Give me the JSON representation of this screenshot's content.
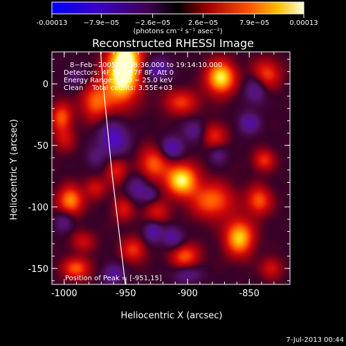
{
  "chart_data": {
    "type": "heatmap",
    "title": "Reconstructed RHESSI Image",
    "xlabel": "Heliocentric X (arcsec)",
    "ylabel": "Heliocentric Y (arcsec)",
    "xlim": [
      -1010,
      -817
    ],
    "ylim": [
      -163,
      26
    ],
    "x_ticks": [
      -1000,
      -950,
      -900,
      -850
    ],
    "x_tick_labels": [
      "-1000",
      "-950",
      "-900",
      "-850"
    ],
    "y_ticks": [
      0,
      -50,
      -100,
      -150
    ],
    "y_tick_labels": [
      "0",
      "-50",
      "-100",
      "-150"
    ],
    "colorscale": "red-temperature",
    "colorbar": {
      "range": [
        -0.00013,
        0.00013
      ],
      "tick_labels": [
        "-0.00013",
        "−7.9e−05",
        "−2.6e−05",
        "2.6e−05",
        "7.9e−05",
        "0.00013"
      ],
      "unit_label": "(photons cm⁻² s⁻¹ asec⁻²)"
    },
    "overlay_lines": [
      "8−Feb−2005 18:38:36.000 to 19:14:10.000",
      "Detectors: 4F 5F 6F 7F 8F, Att 0",
      "Energy Range: 12.0 − 25.0 keV",
      "Clean    Total counts: 3.55E+03"
    ],
    "peak_label": "Position of Peak = [-951,15]",
    "peak": {
      "x": -951,
      "y": 15
    },
    "sources": [
      {
        "x": -950,
        "y": 20,
        "amp": 1.0,
        "sx": 9,
        "sy": 14
      },
      {
        "x": -955,
        "y": 0,
        "amp": 0.7,
        "sx": 10,
        "sy": 14
      },
      {
        "x": -975,
        "y": -15,
        "amp": 0.55,
        "sx": 8,
        "sy": 10
      },
      {
        "x": -873,
        "y": 5,
        "amp": 0.95,
        "sx": 8,
        "sy": 9
      },
      {
        "x": -836,
        "y": 8,
        "amp": 0.5,
        "sx": 8,
        "sy": 8
      },
      {
        "x": -905,
        "y": -15,
        "amp": 0.45,
        "sx": 10,
        "sy": 7
      },
      {
        "x": -1002,
        "y": -27,
        "amp": 0.55,
        "sx": 6,
        "sy": 8
      },
      {
        "x": -1000,
        "y": -45,
        "amp": 0.3,
        "sx": 6,
        "sy": 7
      },
      {
        "x": -995,
        "y": -95,
        "amp": 0.7,
        "sx": 7,
        "sy": 8
      },
      {
        "x": -975,
        "y": -85,
        "amp": 0.35,
        "sx": 6,
        "sy": 6
      },
      {
        "x": -958,
        "y": -70,
        "amp": 0.4,
        "sx": 6,
        "sy": 8
      },
      {
        "x": -928,
        "y": -65,
        "amp": 0.55,
        "sx": 8,
        "sy": 9
      },
      {
        "x": -905,
        "y": -78,
        "amp": 0.95,
        "sx": 9,
        "sy": 9
      },
      {
        "x": -880,
        "y": -95,
        "amp": 0.6,
        "sx": 12,
        "sy": 10
      },
      {
        "x": -858,
        "y": -125,
        "amp": 0.85,
        "sx": 8,
        "sy": 10
      },
      {
        "x": -842,
        "y": -95,
        "amp": 0.55,
        "sx": 7,
        "sy": 8
      },
      {
        "x": -838,
        "y": -62,
        "amp": 0.45,
        "sx": 6,
        "sy": 6
      },
      {
        "x": -878,
        "y": -42,
        "amp": 0.4,
        "sx": 7,
        "sy": 7
      },
      {
        "x": -925,
        "y": -105,
        "amp": 0.35,
        "sx": 7,
        "sy": 7
      },
      {
        "x": -902,
        "y": -140,
        "amp": 0.55,
        "sx": 8,
        "sy": 7
      },
      {
        "x": -944,
        "y": -135,
        "amp": 0.45,
        "sx": 7,
        "sy": 7
      },
      {
        "x": -990,
        "y": -150,
        "amp": 0.55,
        "sx": 8,
        "sy": 6
      },
      {
        "x": -985,
        "y": -128,
        "amp": 0.3,
        "sx": 7,
        "sy": 6
      },
      {
        "x": -952,
        "y": -102,
        "amp": 0.35,
        "sx": 6,
        "sy": 7
      },
      {
        "x": -832,
        "y": -150,
        "amp": 0.35,
        "sx": 6,
        "sy": 6
      },
      {
        "x": -960,
        "y": -45,
        "amp": -0.6,
        "sx": 8,
        "sy": 10
      },
      {
        "x": -940,
        "y": -85,
        "amp": -0.4,
        "sx": 6,
        "sy": 7
      },
      {
        "x": -895,
        "y": -38,
        "amp": -0.35,
        "sx": 6,
        "sy": 6
      },
      {
        "x": -912,
        "y": -52,
        "amp": -0.55,
        "sx": 6,
        "sy": 6
      },
      {
        "x": -850,
        "y": -32,
        "amp": -0.45,
        "sx": 6,
        "sy": 6
      },
      {
        "x": -845,
        "y": -5,
        "amp": -0.4,
        "sx": 6,
        "sy": 8
      },
      {
        "x": -925,
        "y": 12,
        "amp": -0.5,
        "sx": 8,
        "sy": 6
      },
      {
        "x": -1000,
        "y": -112,
        "amp": -0.35,
        "sx": 5,
        "sy": 6
      },
      {
        "x": -928,
        "y": -120,
        "amp": -0.5,
        "sx": 5,
        "sy": 6
      },
      {
        "x": -912,
        "y": -125,
        "amp": -0.45,
        "sx": 6,
        "sy": 6
      },
      {
        "x": -960,
        "y": -155,
        "amp": -0.45,
        "sx": 6,
        "sy": 6
      },
      {
        "x": -900,
        "y": -155,
        "amp": -0.35,
        "sx": 8,
        "sy": 5
      },
      {
        "x": -930,
        "y": -90,
        "amp": -0.3,
        "sx": 4,
        "sy": 4
      },
      {
        "x": -990,
        "y": 5,
        "amp": -0.25,
        "sx": 6,
        "sy": 6
      },
      {
        "x": -975,
        "y": -60,
        "amp": -0.25,
        "sx": 5,
        "sy": 6
      },
      {
        "x": -875,
        "y": -58,
        "amp": -0.3,
        "sx": 5,
        "sy": 5
      }
    ],
    "limb_curve": [
      [
        -970.5,
        26
      ],
      [
        -968.5,
        0
      ],
      [
        -966,
        -25
      ],
      [
        -963.5,
        -50
      ],
      [
        -961,
        -75
      ],
      [
        -958,
        -100
      ],
      [
        -955,
        -125
      ],
      [
        -952,
        -150
      ],
      [
        -950.5,
        -163
      ]
    ]
  },
  "footer": {
    "timestamp": "7-Jul-2013 00:44"
  },
  "colors": {
    "background": "#000000",
    "foreground": "#ffffff"
  }
}
